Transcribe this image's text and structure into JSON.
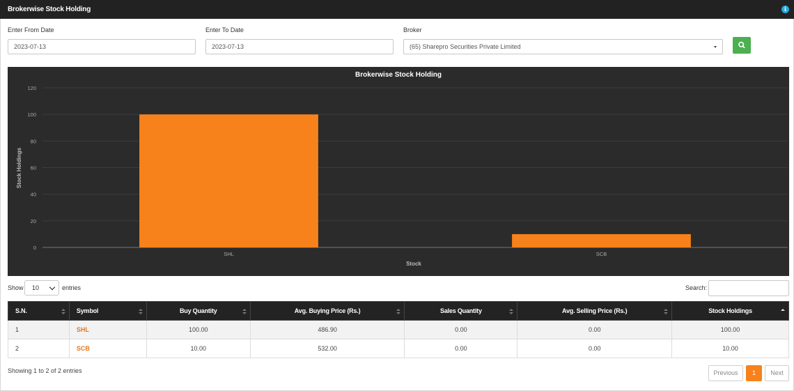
{
  "header": {
    "title": "Brokerwise Stock Holding",
    "info_icon": "info-icon"
  },
  "filters": {
    "from_label": "Enter From Date",
    "from_value": "2023-07-13",
    "to_label": "Enter To Date",
    "to_value": "2023-07-13",
    "broker_label": "Broker",
    "broker_value": "(65) Sharepro Securities Private Limited",
    "search_icon": "search-icon"
  },
  "chart_data": {
    "type": "bar",
    "title": "Brokerwise Stock Holding",
    "xlabel": "Stock",
    "ylabel": "Stock Holdings",
    "categories": [
      "SHL",
      "SCB"
    ],
    "values": [
      100,
      10
    ],
    "ylim": [
      0,
      120
    ],
    "yticks": [
      0,
      20,
      40,
      60,
      80,
      100,
      120
    ],
    "grid": true,
    "bar_color": "#f7821b",
    "background": "#2b2b2b"
  },
  "table_controls": {
    "show_label": "Show",
    "entries_value": "10",
    "entries_label": "entries",
    "search_label": "Search:"
  },
  "table": {
    "columns": [
      "S.N.",
      "Symbol",
      "Buy Quantity",
      "Avg. Buying Price (Rs.)",
      "Sales Quantity",
      "Avg. Selling Price (Rs.)",
      "Stock Holdings"
    ],
    "rows": [
      [
        "1",
        "SHL",
        "100.00",
        "486.90",
        "0.00",
        "0.00",
        "100.00"
      ],
      [
        "2",
        "SCB",
        "10.00",
        "532.00",
        "0.00",
        "0.00",
        "10.00"
      ]
    ]
  },
  "footer": {
    "summary": "Showing 1 to 2 of 2 entries",
    "previous": "Previous",
    "page": "1",
    "next": "Next"
  },
  "colors": {
    "accent": "#f7821b",
    "search_button": "#4caf50",
    "header_bg": "#222222"
  }
}
